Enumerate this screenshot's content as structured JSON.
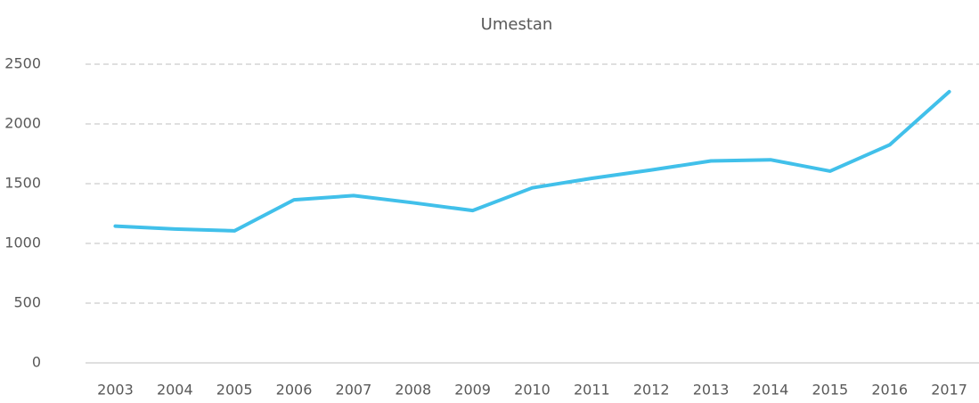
{
  "chart_data": {
    "type": "line",
    "title": "Umestan",
    "categories": [
      "2003",
      "2004",
      "2005",
      "2006",
      "2007",
      "2008",
      "2009",
      "2010",
      "2011",
      "2012",
      "2013",
      "2014",
      "2015",
      "2016",
      "2017"
    ],
    "series": [
      {
        "name": "Umestan",
        "color": "#41c0ea",
        "values": [
          1145,
          1120,
          1105,
          1365,
          1400,
          1340,
          1275,
          1465,
          1545,
          1615,
          1690,
          1700,
          1605,
          1825,
          2270
        ]
      }
    ],
    "ylim": [
      0,
      2500
    ],
    "yticks": [
      0,
      500,
      1000,
      1500,
      2000,
      2500
    ],
    "grid": true
  }
}
